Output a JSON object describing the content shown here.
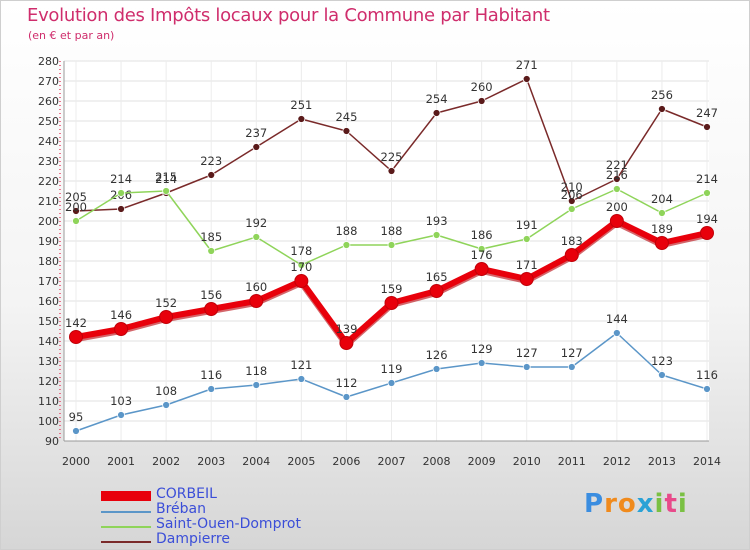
{
  "title": "Evolution des Impôts locaux pour la Commune par Habitant",
  "subtitle": "(en € et par an)",
  "logo": {
    "text": "Proxiti",
    "letters": [
      "P",
      "r",
      "o",
      "x",
      "i",
      "t",
      "i"
    ],
    "colors": [
      "#3a8de0",
      "#f08a1c",
      "#f08a1c",
      "#2aa2d6",
      "#7ac043",
      "#e84a8a",
      "#7ac043"
    ]
  },
  "chart_data": {
    "type": "line",
    "x": [
      "2000",
      "2001",
      "2002",
      "2003",
      "2004",
      "2005",
      "2006",
      "2007",
      "2008",
      "2009",
      "2010",
      "2011",
      "2012",
      "2013",
      "2014"
    ],
    "ylim": [
      90,
      280
    ],
    "yticks": [
      90,
      100,
      110,
      120,
      130,
      140,
      150,
      160,
      170,
      180,
      190,
      200,
      210,
      220,
      230,
      240,
      250,
      260,
      270,
      280
    ],
    "grid": true,
    "legend_position": "bottom-left",
    "series": [
      {
        "name": "Dampierre",
        "color": "#7a2a2a",
        "width": 1.5,
        "marker_fill": "#5a1a1a",
        "values": [
          205,
          206,
          214,
          223,
          237,
          251,
          245,
          225,
          254,
          260,
          271,
          210,
          221,
          256,
          247
        ]
      },
      {
        "name": "Saint-Ouen-Domprot",
        "color": "#8fd45a",
        "width": 1.5,
        "marker_fill": "#8fd45a",
        "values": [
          200,
          214,
          215,
          185,
          192,
          178,
          188,
          188,
          193,
          186,
          191,
          206,
          216,
          204,
          214
        ]
      },
      {
        "name": "Bréban",
        "color": "#5b96c8",
        "width": 1.5,
        "marker_fill": "#5b96c8",
        "values": [
          95,
          103,
          108,
          116,
          118,
          121,
          112,
          119,
          126,
          129,
          127,
          127,
          144,
          123,
          116
        ]
      },
      {
        "name": "CORBEIL",
        "color": "#e8000b",
        "width": 6,
        "marker_fill": "#e8000b",
        "values": [
          142,
          146,
          152,
          156,
          160,
          170,
          139,
          159,
          165,
          176,
          171,
          183,
          200,
          189,
          194
        ]
      }
    ],
    "legend_order": [
      "CORBEIL",
      "Bréban",
      "Saint-Ouen-Domprot",
      "Dampierre"
    ]
  }
}
